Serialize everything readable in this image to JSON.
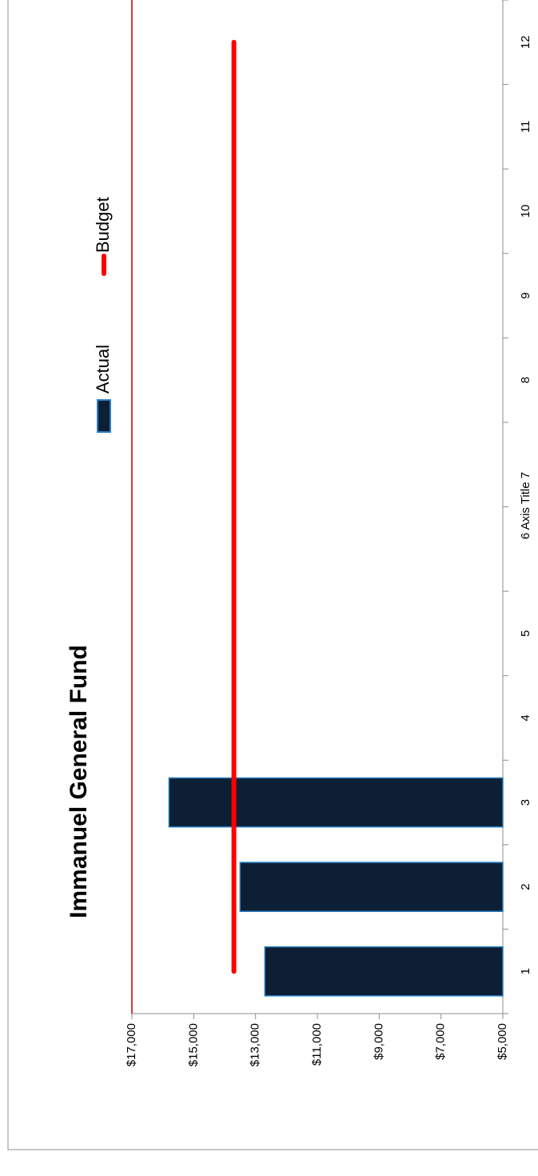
{
  "chart_data": {
    "type": "bar",
    "title": "Immanuel General Fund",
    "xlabel": "Axis Title",
    "ylabel": "",
    "categories": [
      "1",
      "2",
      "3",
      "4",
      "5",
      "6",
      "7",
      "8",
      "9",
      "10",
      "11",
      "12"
    ],
    "series": [
      {
        "name": "Actual",
        "kind": "bar",
        "color": "#0c1f35",
        "edge_color": "#2b7fc2",
        "values": [
          12700,
          13500,
          15800,
          null,
          null,
          null,
          null,
          null,
          null,
          null,
          null,
          null
        ]
      },
      {
        "name": "Budget",
        "kind": "line",
        "color": "#ff0000",
        "values": [
          13700,
          13700,
          13700,
          13700,
          13700,
          13700,
          13700,
          13700,
          13700,
          13700,
          13700,
          13700
        ]
      }
    ],
    "ylim": [
      5000,
      17000
    ],
    "yticks": [
      "$5,000",
      "$7,000",
      "$9,000",
      "$11,000",
      "$13,000",
      "$15,000",
      "$17,000"
    ],
    "ytick_values": [
      5000,
      7000,
      9000,
      11000,
      13000,
      15000,
      17000
    ],
    "limit_line": {
      "value": 17000,
      "color": "#c00000"
    },
    "legend_position": "top",
    "orientation": "rotated-90-clockwise",
    "grid": false
  }
}
